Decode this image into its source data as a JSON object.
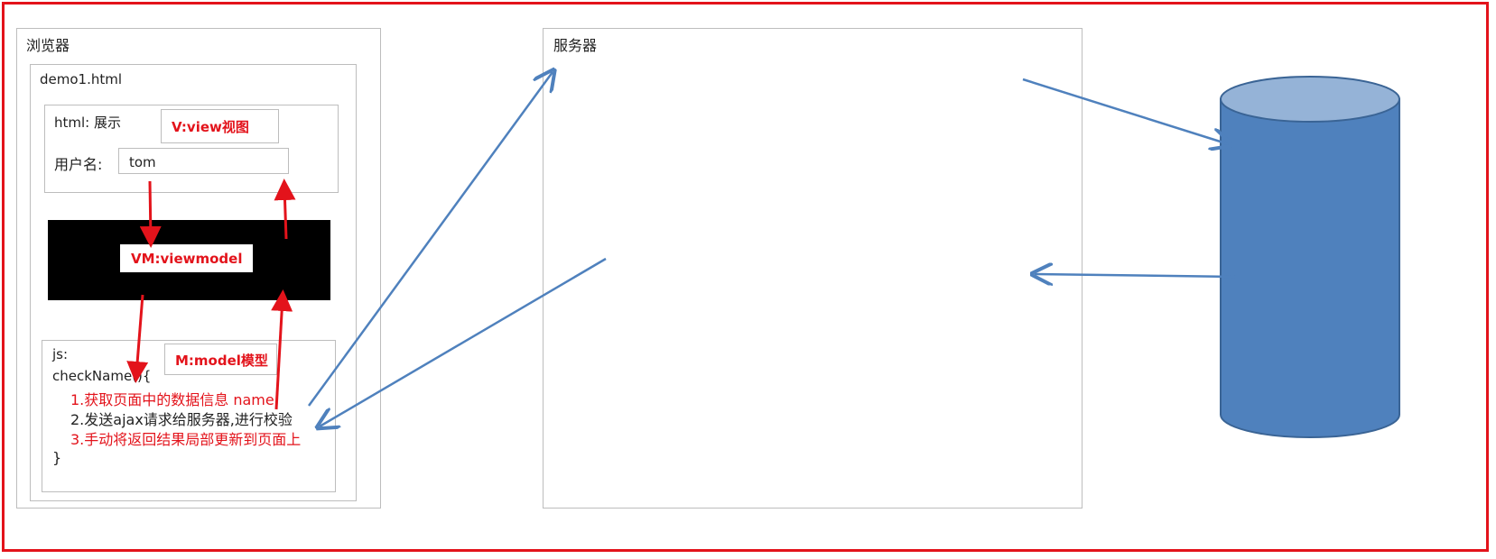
{
  "browser": {
    "title": "浏览器",
    "page_file": "demo1.html",
    "html_section": {
      "title": "html: 展示",
      "view_tag": "V:view视图",
      "username_label": "用户名:",
      "username_value": "tom"
    },
    "viewmodel_tag": "VM:viewmodel",
    "js_section": {
      "title": "js:",
      "model_tag": "M:model模型",
      "func_open": "checkName(){",
      "step1": "1.获取页面中的数据信息  name",
      "step2": "2.发送ajax请求给服务器,进行校验",
      "step3": "3.手动将返回结果局部更新到页面上",
      "func_close": "}"
    }
  },
  "server": {
    "title": "服务器"
  },
  "colors": {
    "accent_red": "#e3131b",
    "arrow_blue": "#4f81bd",
    "cylinder_fill": "#4f81bd",
    "cylinder_top": "#95b3d7",
    "border_gray": "#bdbdbd"
  }
}
